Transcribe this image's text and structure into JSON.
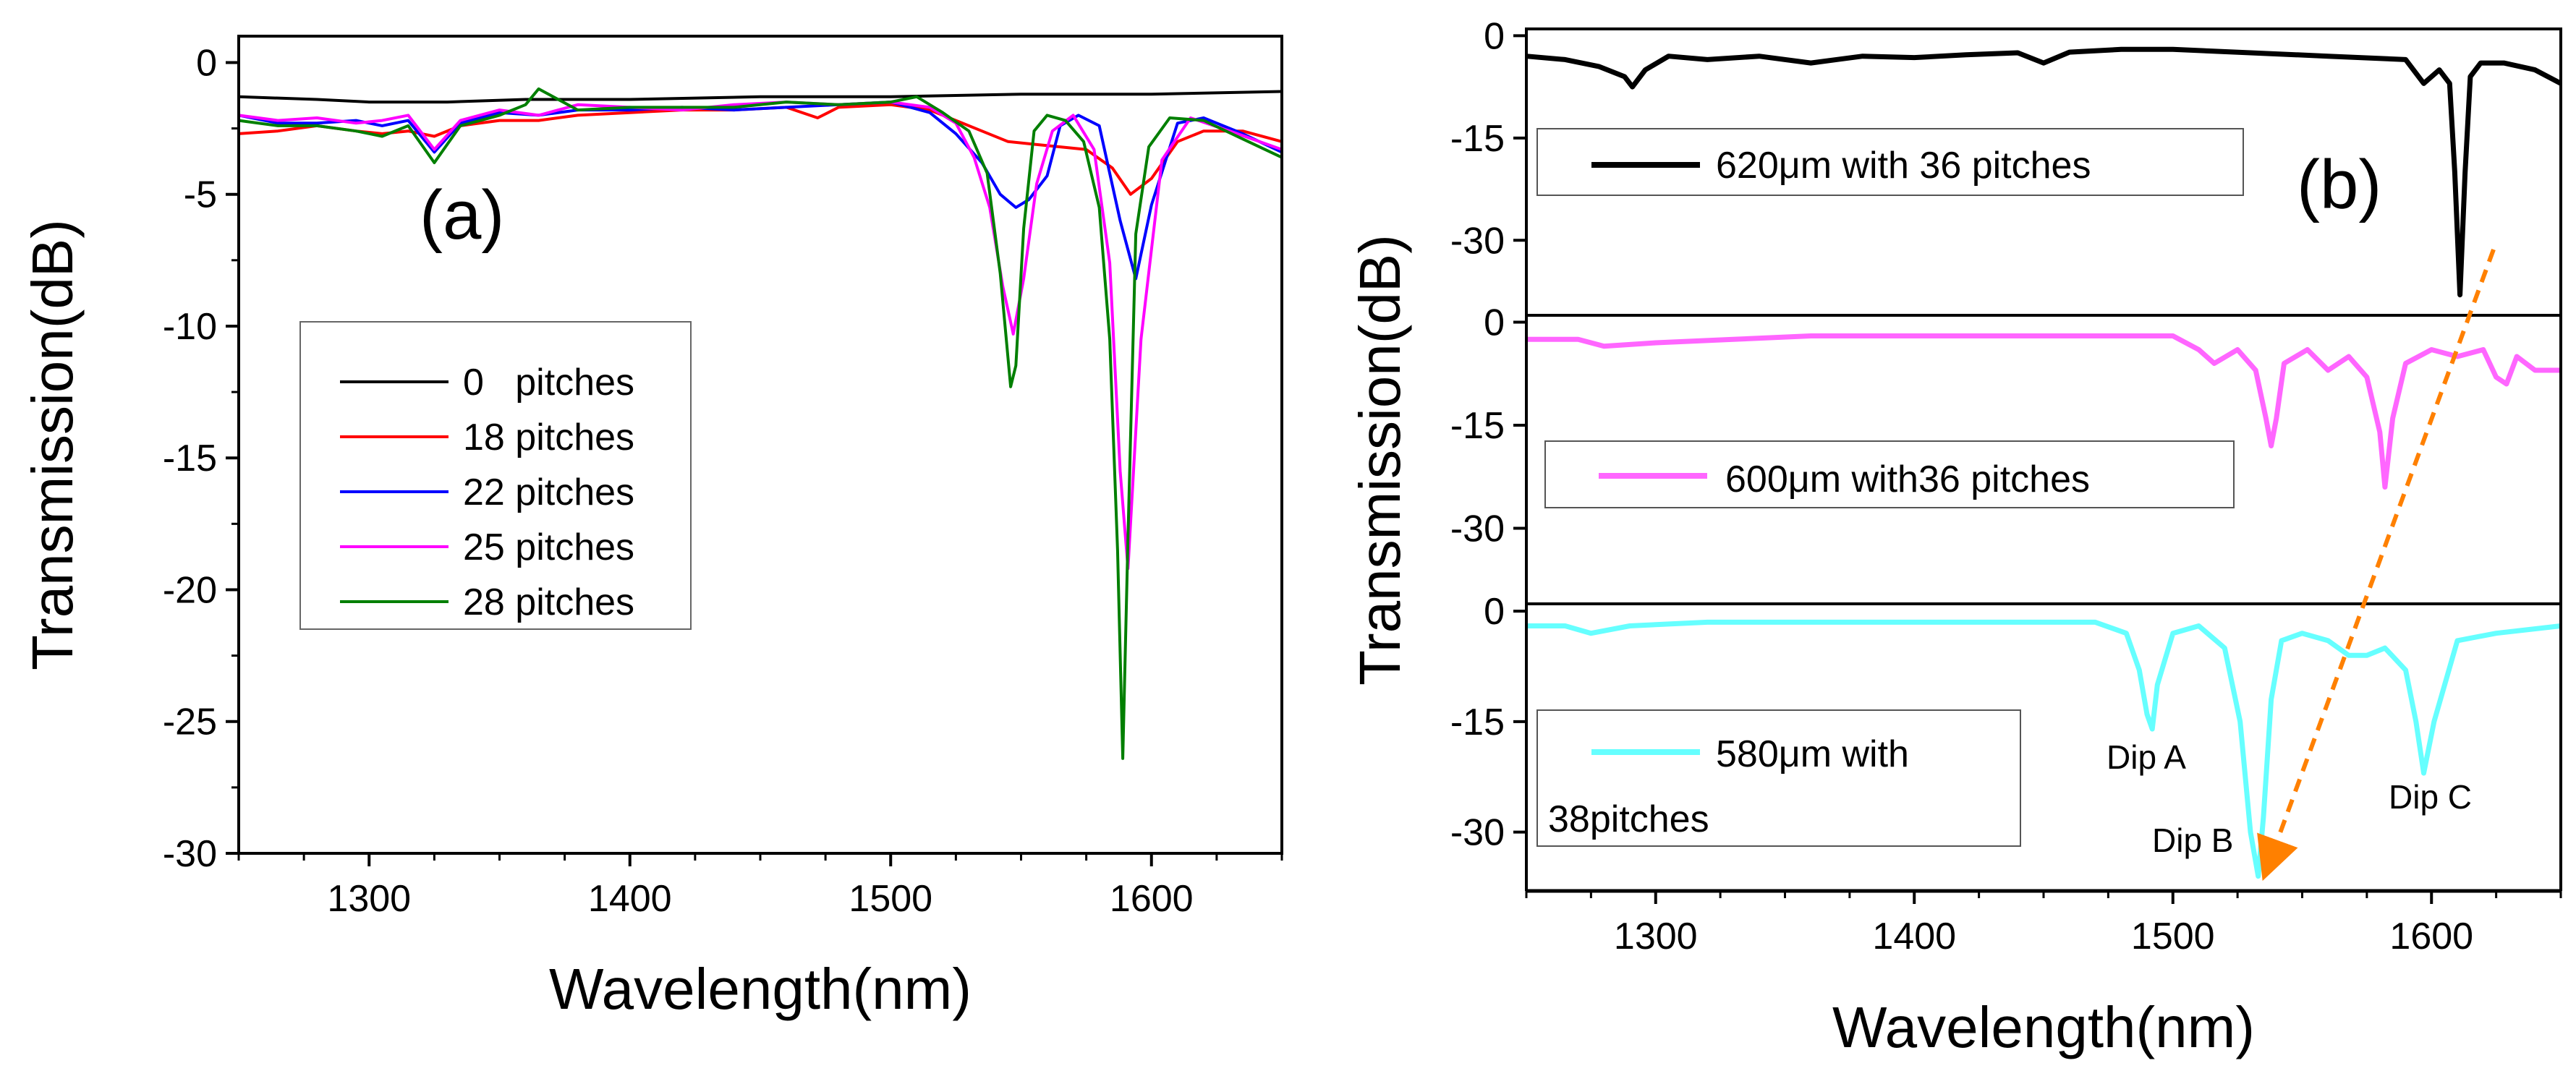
{
  "chart_data": [
    {
      "panel": "a",
      "type": "line",
      "panel_label": "(a)",
      "xlabel": "Wavelength(nm)",
      "ylabel": "Transmission(dB)",
      "xlim": [
        1250,
        1650
      ],
      "ylim": [
        -30,
        1
      ],
      "x_ticks": [
        1300,
        1400,
        1500,
        1600
      ],
      "y_ticks": [
        0,
        -5,
        -10,
        -15,
        -20,
        -25,
        -30
      ],
      "legend_position": "left-center",
      "series": [
        {
          "name": "0   pitches",
          "color": "#000000",
          "x": [
            1250,
            1280,
            1300,
            1330,
            1360,
            1400,
            1450,
            1500,
            1550,
            1600,
            1650
          ],
          "y": [
            -1.3,
            -1.4,
            -1.5,
            -1.5,
            -1.4,
            -1.4,
            -1.3,
            -1.3,
            -1.2,
            -1.2,
            -1.1
          ]
        },
        {
          "name": "18 pitches",
          "color": "#ff0000",
          "x": [
            1250,
            1265,
            1280,
            1295,
            1305,
            1315,
            1325,
            1335,
            1350,
            1365,
            1380,
            1400,
            1420,
            1440,
            1460,
            1472,
            1480,
            1500,
            1515,
            1525,
            1535,
            1545,
            1555,
            1565,
            1575,
            1585,
            1592,
            1600,
            1610,
            1620,
            1635,
            1650
          ],
          "y": [
            -2.7,
            -2.6,
            -2.4,
            -2.6,
            -2.7,
            -2.6,
            -2.8,
            -2.4,
            -2.2,
            -2.2,
            -2.0,
            -1.9,
            -1.8,
            -1.8,
            -1.7,
            -2.1,
            -1.7,
            -1.6,
            -1.8,
            -2.2,
            -2.6,
            -3.0,
            -3.1,
            -3.2,
            -3.3,
            -4.0,
            -5.0,
            -4.4,
            -3.0,
            -2.6,
            -2.6,
            -3.0
          ]
        },
        {
          "name": "22 pitches",
          "color": "#0000ff",
          "x": [
            1250,
            1265,
            1280,
            1295,
            1305,
            1315,
            1325,
            1335,
            1350,
            1365,
            1380,
            1400,
            1420,
            1440,
            1460,
            1480,
            1500,
            1515,
            1525,
            1535,
            1542,
            1548,
            1553,
            1560,
            1565,
            1572,
            1580,
            1588,
            1594,
            1600,
            1610,
            1620,
            1635,
            1650
          ],
          "y": [
            -2.0,
            -2.3,
            -2.3,
            -2.2,
            -2.4,
            -2.2,
            -3.4,
            -2.3,
            -1.9,
            -2.0,
            -1.8,
            -1.8,
            -1.7,
            -1.8,
            -1.7,
            -1.6,
            -1.5,
            -1.9,
            -2.7,
            -3.8,
            -5.0,
            -5.5,
            -5.2,
            -4.3,
            -2.4,
            -2.0,
            -2.4,
            -6.0,
            -8.2,
            -5.4,
            -2.3,
            -2.1,
            -2.7,
            -3.4
          ]
        },
        {
          "name": "25 pitches",
          "color": "#ff00ff",
          "x": [
            1250,
            1265,
            1280,
            1295,
            1305,
            1315,
            1325,
            1335,
            1350,
            1365,
            1380,
            1400,
            1420,
            1440,
            1460,
            1480,
            1500,
            1515,
            1525,
            1532,
            1538,
            1543,
            1547,
            1551,
            1556,
            1562,
            1570,
            1578,
            1584,
            1588,
            1591,
            1596,
            1604,
            1615,
            1630,
            1650
          ],
          "y": [
            -2.0,
            -2.2,
            -2.1,
            -2.3,
            -2.2,
            -2.0,
            -3.3,
            -2.2,
            -1.8,
            -2.0,
            -1.6,
            -1.7,
            -1.8,
            -1.6,
            -1.5,
            -1.6,
            -1.5,
            -1.7,
            -2.3,
            -3.6,
            -5.5,
            -8.5,
            -10.3,
            -8.2,
            -4.6,
            -2.6,
            -2.0,
            -3.3,
            -7.6,
            -15.5,
            -19.2,
            -10.5,
            -3.7,
            -2.1,
            -2.6,
            -3.3
          ]
        },
        {
          "name": "28 pitches",
          "color": "#007f00",
          "x": [
            1250,
            1265,
            1280,
            1295,
            1305,
            1315,
            1325,
            1335,
            1350,
            1360,
            1365,
            1380,
            1400,
            1420,
            1440,
            1460,
            1480,
            1500,
            1510,
            1520,
            1530,
            1537,
            1542,
            1546,
            1548,
            1551,
            1555,
            1560,
            1567,
            1574,
            1580,
            1584,
            1587,
            1589,
            1591,
            1594,
            1599,
            1607,
            1620,
            1635,
            1650
          ],
          "y": [
            -2.2,
            -2.4,
            -2.4,
            -2.6,
            -2.8,
            -2.4,
            -3.8,
            -2.4,
            -2.0,
            -1.6,
            -1.0,
            -1.8,
            -1.7,
            -1.7,
            -1.7,
            -1.5,
            -1.6,
            -1.5,
            -1.3,
            -1.9,
            -2.6,
            -4.2,
            -8.0,
            -12.3,
            -11.5,
            -6.3,
            -2.6,
            -2.0,
            -2.2,
            -3.0,
            -5.5,
            -10.5,
            -18.5,
            -26.4,
            -18.0,
            -6.5,
            -3.2,
            -2.1,
            -2.2,
            -2.9,
            -3.6
          ]
        }
      ]
    },
    {
      "panel": "b",
      "type": "line",
      "panel_label": "(b)",
      "xlabel": "Wavelength(nm)",
      "ylabel": "Transmission(dB)",
      "xlim": [
        1250,
        1650
      ],
      "x_ticks": [
        1300,
        1400,
        1500,
        1600
      ],
      "subplots": [
        {
          "name": "620μm with 36 pitches",
          "legend_lines": [
            "620μm with 36 pitches"
          ],
          "color": "#000000",
          "ylim": [
            -41,
            1
          ],
          "y_ticks": [
            0,
            -15,
            -30
          ],
          "x": [
            1250,
            1265,
            1278,
            1288,
            1291,
            1296,
            1305,
            1320,
            1340,
            1360,
            1380,
            1400,
            1420,
            1440,
            1450,
            1460,
            1480,
            1500,
            1530,
            1560,
            1590,
            1597,
            1603,
            1607,
            1609,
            1611,
            1613,
            1615,
            1619,
            1628,
            1640,
            1650
          ],
          "y": [
            -3,
            -3.5,
            -4.5,
            -6,
            -7.5,
            -5,
            -3,
            -3.5,
            -3,
            -4,
            -3,
            -3.2,
            -2.8,
            -2.5,
            -4,
            -2.4,
            -2,
            -2,
            -2.5,
            -3,
            -3.5,
            -7,
            -5,
            -7,
            -20,
            -38,
            -20,
            -6,
            -4,
            -4,
            -5,
            -7
          ]
        },
        {
          "name": "600μm with36 pitches",
          "legend_lines": [
            "600μm with36 pitches"
          ],
          "color": "#ff66ff",
          "ylim": [
            -41,
            1
          ],
          "y_ticks": [
            0,
            -15,
            -30
          ],
          "x": [
            1250,
            1270,
            1280,
            1300,
            1330,
            1360,
            1400,
            1450,
            1480,
            1500,
            1510,
            1516,
            1525,
            1532,
            1536,
            1538,
            1540,
            1543,
            1552,
            1560,
            1568,
            1575,
            1580,
            1582,
            1585,
            1590,
            1600,
            1610,
            1620,
            1625,
            1629,
            1633,
            1640,
            1650
          ],
          "y": [
            -2.5,
            -2.5,
            -3.5,
            -3,
            -2.5,
            -2,
            -2,
            -2,
            -2,
            -2,
            -4,
            -6,
            -4,
            -7,
            -14,
            -18,
            -14,
            -6,
            -4,
            -7,
            -5,
            -8,
            -16,
            -24,
            -14,
            -6,
            -4,
            -5,
            -4,
            -8,
            -9,
            -5,
            -7,
            -7
          ]
        },
        {
          "name": "580μm with 38pitches",
          "legend_lines": [
            "580μm with",
            "38pitches"
          ],
          "color": "#66ffff",
          "ylim": [
            -38,
            1
          ],
          "y_ticks": [
            0,
            -15,
            -30
          ],
          "x": [
            1250,
            1265,
            1275,
            1290,
            1320,
            1360,
            1400,
            1440,
            1470,
            1482,
            1487,
            1490,
            1492,
            1494,
            1500,
            1510,
            1520,
            1526,
            1530,
            1533,
            1535,
            1538,
            1542,
            1550,
            1560,
            1568,
            1575,
            1582,
            1590,
            1594,
            1597,
            1601,
            1610,
            1625,
            1650
          ],
          "y": [
            -2,
            -2,
            -3,
            -2,
            -1.5,
            -1.5,
            -1.5,
            -1.5,
            -1.5,
            -3,
            -8,
            -14,
            -16,
            -10,
            -3,
            -2,
            -5,
            -15,
            -30,
            -36,
            -28,
            -12,
            -4,
            -3,
            -4,
            -6,
            -6,
            -5,
            -8,
            -15,
            -22,
            -15,
            -4,
            -3,
            -2
          ]
        }
      ],
      "annotations": [
        "Dip A",
        "Dip B",
        "Dip C"
      ]
    }
  ]
}
